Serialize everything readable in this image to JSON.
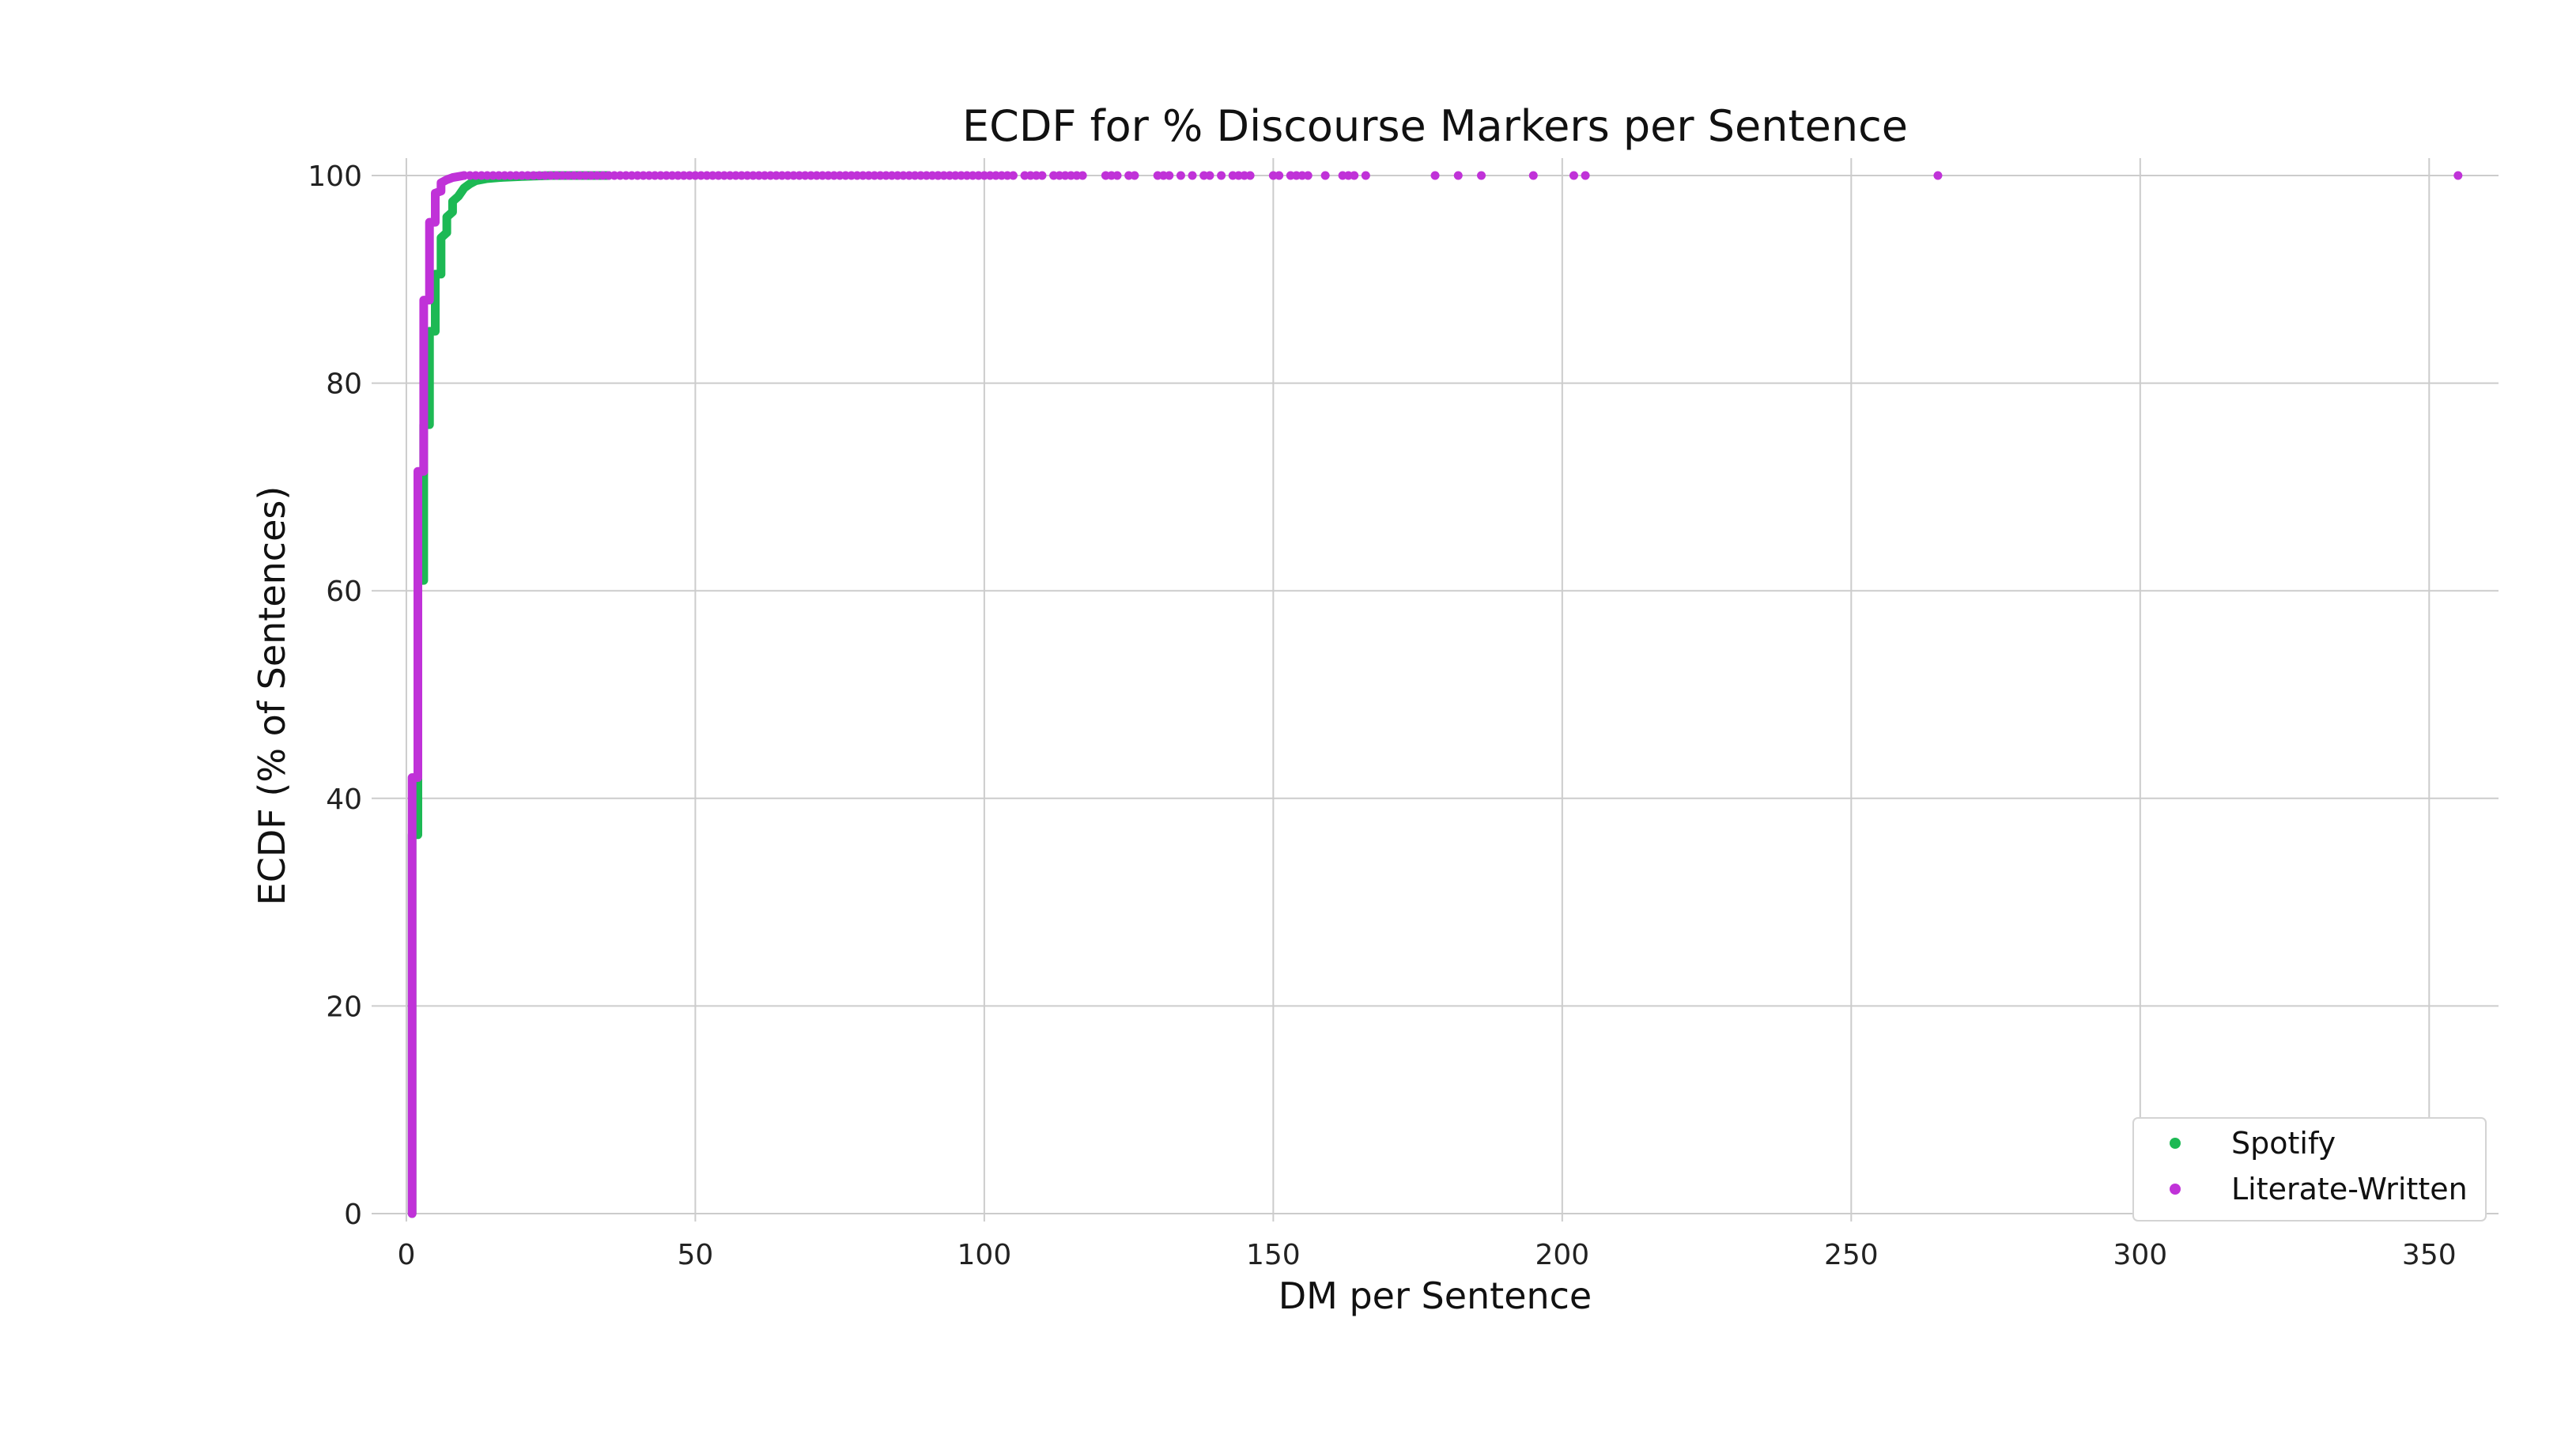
{
  "chart_data": {
    "type": "scatter",
    "title": "ECDF for % Discourse Markers per Sentence",
    "xlabel": "DM per Sentence",
    "ylabel": "ECDF (% of Sentences)",
    "xlim": [
      -3,
      362
    ],
    "ylim": [
      0,
      100
    ],
    "xticks": [
      0,
      50,
      100,
      150,
      200,
      250,
      300,
      350
    ],
    "yticks": [
      0,
      20,
      40,
      60,
      80,
      100
    ],
    "grid": true,
    "legend_position": "bottom-right",
    "series": [
      {
        "name": "Spotify",
        "color": "#1db954",
        "steps": [
          [
            1,
            0
          ],
          [
            1,
            36.5
          ],
          [
            2,
            36.5
          ],
          [
            2,
            41.5
          ],
          [
            2,
            61
          ],
          [
            3,
            61
          ],
          [
            3,
            71
          ],
          [
            3,
            76
          ],
          [
            4,
            76
          ],
          [
            4,
            84
          ],
          [
            4,
            85
          ],
          [
            5,
            85
          ],
          [
            5,
            90.5
          ],
          [
            6,
            90.5
          ],
          [
            6,
            94
          ],
          [
            7,
            94.5
          ],
          [
            7,
            96
          ],
          [
            8,
            96.5
          ],
          [
            8,
            97.5
          ],
          [
            9,
            98
          ],
          [
            10,
            98.8
          ],
          [
            11,
            99.2
          ],
          [
            12,
            99.5
          ],
          [
            14,
            99.7
          ],
          [
            16,
            99.8
          ],
          [
            20,
            99.9
          ],
          [
            25,
            100
          ],
          [
            35,
            100
          ]
        ]
      },
      {
        "name": "Literate-Written",
        "color": "#c032d8",
        "steps": [
          [
            1,
            0
          ],
          [
            1,
            42
          ],
          [
            2,
            42
          ],
          [
            2,
            71.5
          ],
          [
            3,
            71.5
          ],
          [
            3,
            88
          ],
          [
            4,
            88
          ],
          [
            4,
            95.5
          ],
          [
            5,
            95.5
          ],
          [
            5,
            98.3
          ],
          [
            6,
            98.5
          ],
          [
            6,
            99.3
          ],
          [
            7,
            99.6
          ],
          [
            8,
            99.8
          ],
          [
            9,
            99.9
          ],
          [
            10,
            100
          ]
        ],
        "tail_x_range": [
          10,
          92
        ],
        "outliers_x": [
          92,
          93,
          94,
          95,
          96,
          97,
          98,
          99,
          100,
          101,
          102,
          103,
          104,
          105,
          107,
          108,
          109,
          110,
          112,
          113,
          114,
          115,
          116,
          117,
          121,
          122,
          123,
          125,
          126,
          130,
          131,
          132,
          134,
          136,
          138,
          139,
          141,
          143,
          144,
          145,
          146,
          150,
          151,
          153,
          154,
          155,
          156,
          159,
          162,
          163,
          164,
          166,
          178,
          182,
          186,
          195,
          202,
          204,
          265,
          355
        ]
      }
    ]
  }
}
